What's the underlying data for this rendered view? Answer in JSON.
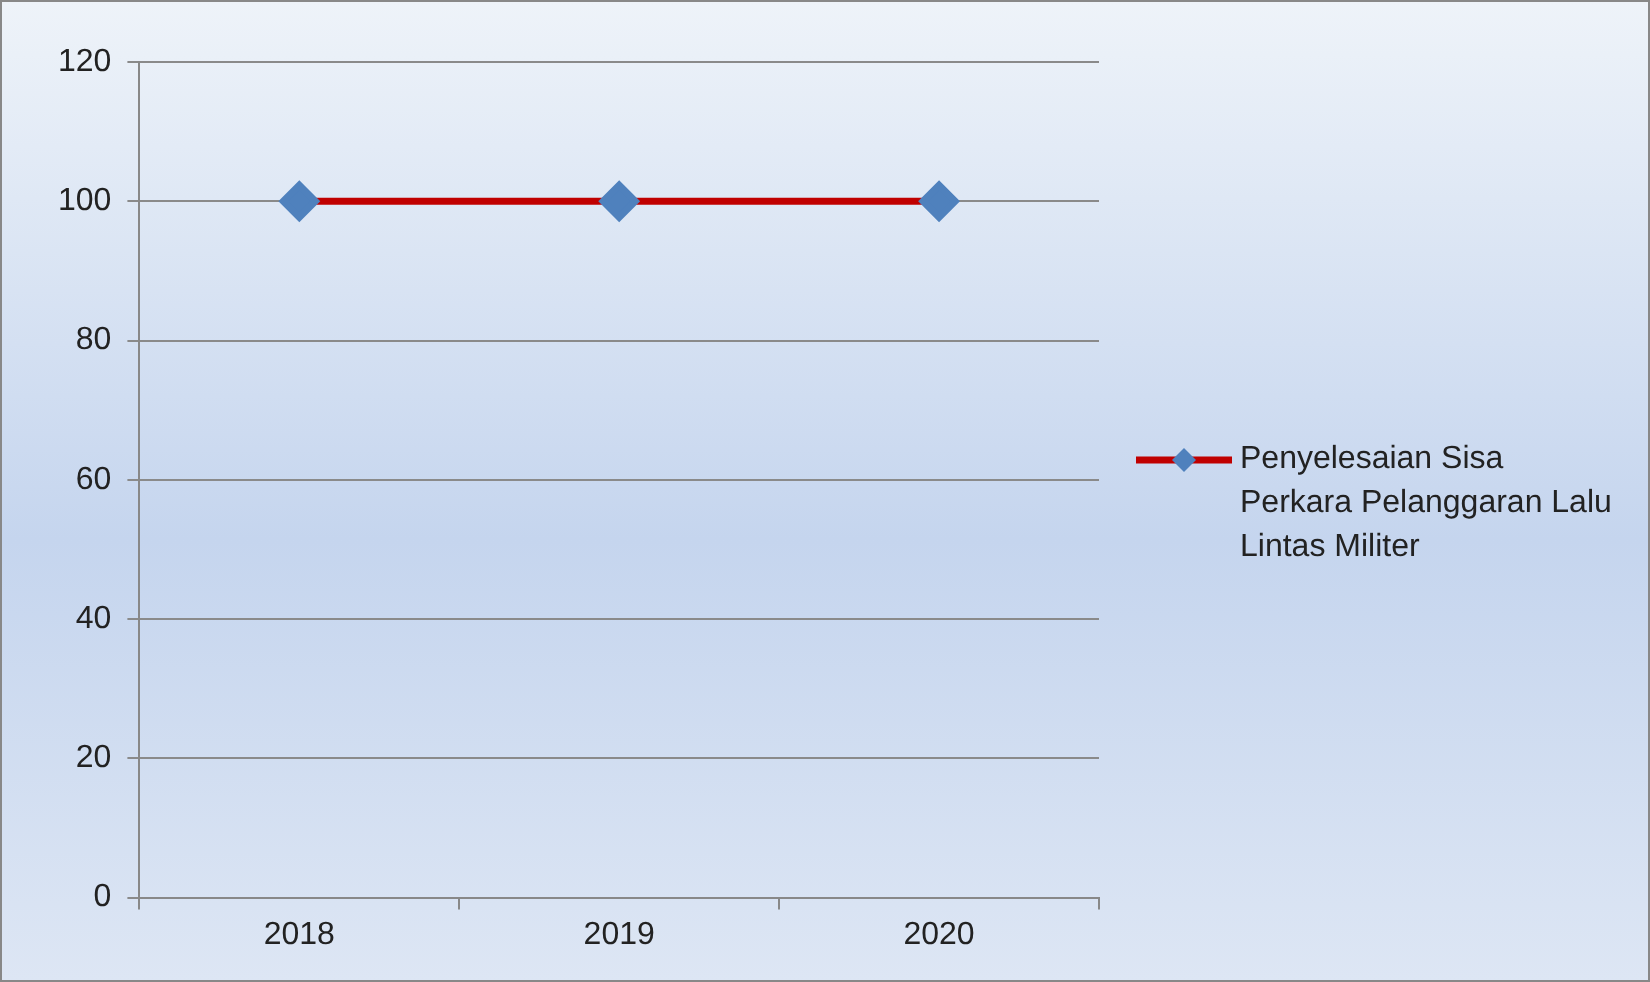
{
  "chart_data": {
    "type": "line",
    "categories": [
      "2018",
      "2019",
      "2020"
    ],
    "series": [
      {
        "name": "Penyelesaian Sisa Perkara Pelanggaran Lalu Lintas Militer",
        "color": "#c00000",
        "colors": [
          "#4f81bd",
          "#4f81bd",
          "#4f81bd"
        ],
        "values": [
          100,
          100,
          100
        ]
      }
    ],
    "ylim": [
      0,
      120
    ],
    "yticks": [
      0,
      20,
      40,
      60,
      80,
      100,
      120
    ],
    "grid": "y",
    "legend": "right",
    "marker": "diamond",
    "line_style": "solid"
  }
}
